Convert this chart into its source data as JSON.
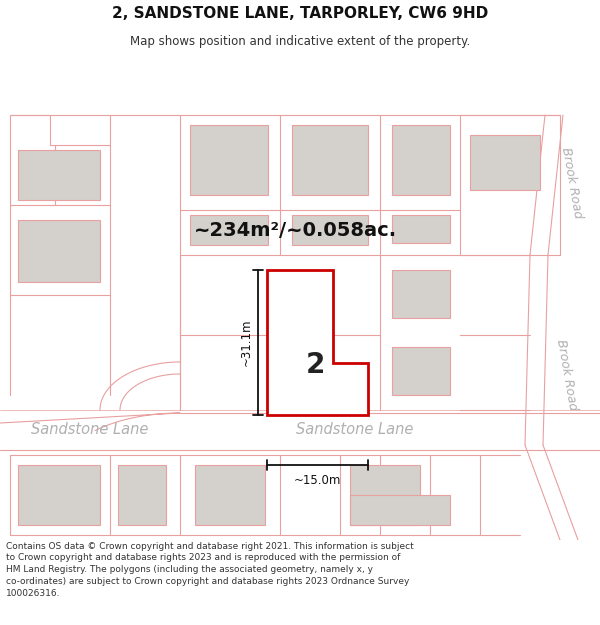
{
  "title": "2, SANDSTONE LANE, TARPORLEY, CW6 9HD",
  "subtitle": "Map shows position and indicative extent of the property.",
  "area_label": "~234m²/~0.058ac.",
  "plot_number": "2",
  "dim_height": "~31.1m",
  "dim_width": "~15.0m",
  "street_name_left": "Sandstone Lane",
  "street_name_right": "Sandstone Lane",
  "road_label_top": "Brook Road",
  "road_label_bottom": "Brook Road",
  "footer": "Contains OS data © Crown copyright and database right 2021. This information is subject to Crown copyright and database rights 2023 and is reproduced with the permission of HM Land Registry. The polygons (including the associated geometry, namely x, y co-ordinates) are subject to Crown copyright and database rights 2023 Ordnance Survey 100026316.",
  "bg_color": "#ffffff",
  "map_bg": "#f0eeec",
  "building_fill": "#d4d0cb",
  "building_stroke": "#e8a0a0",
  "road_color": "#e8a0a0",
  "plot_stroke": "#cc0000",
  "plot_fill": "#ffffff",
  "dim_color": "#111111",
  "text_color": "#333333",
  "road_text_color": "#b0b0b0"
}
